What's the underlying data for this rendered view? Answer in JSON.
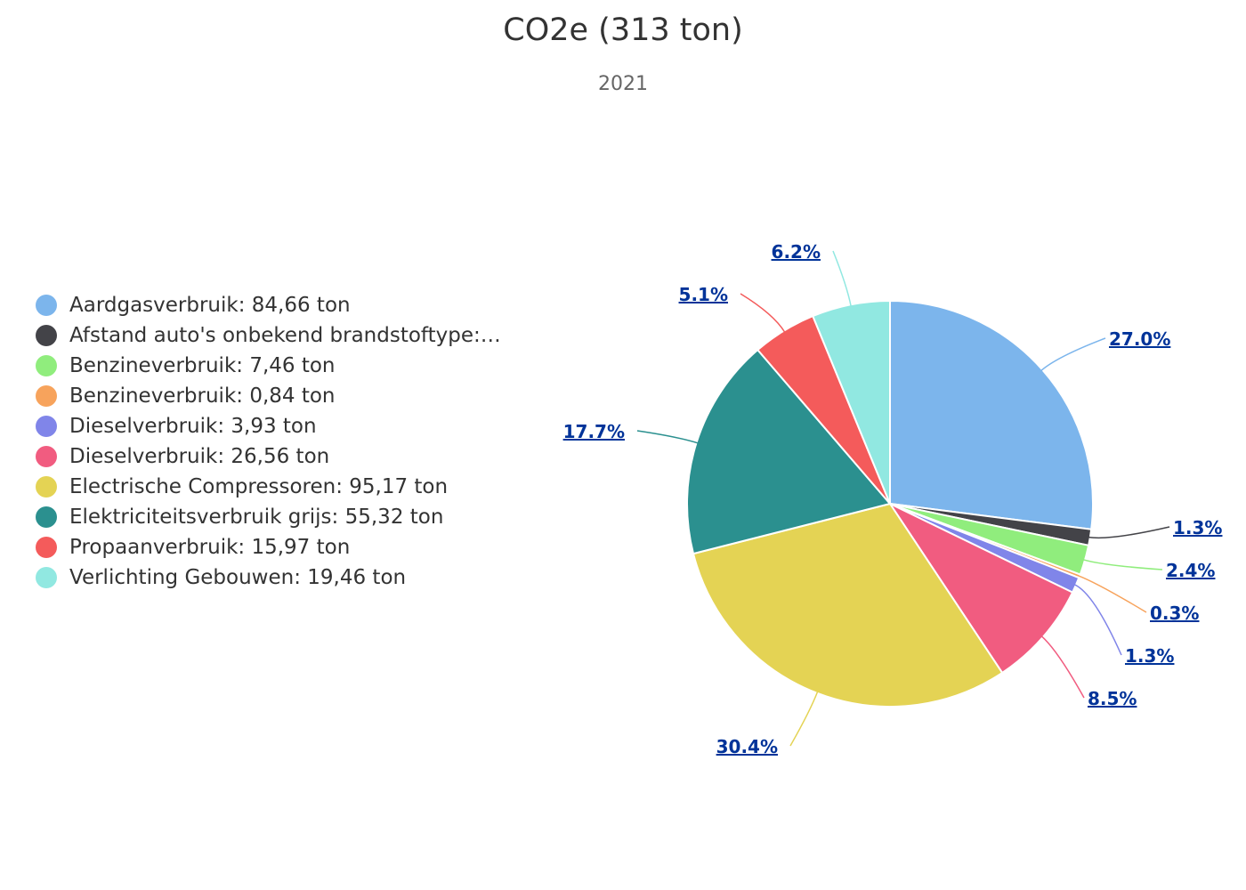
{
  "chart_data": {
    "type": "pie",
    "title": "CO2e (313 ton)",
    "subtitle": "2021",
    "legend_position": "left",
    "slices": [
      {
        "label": "Aardgasverbruik: 84,66 ton",
        "value": 84.66,
        "percent_label": "27.0%",
        "color": "#7cb5ec"
      },
      {
        "label": "Afstand auto's onbekend brandstoftype:…",
        "value": 4.0,
        "percent_label": "1.3%",
        "color": "#434348"
      },
      {
        "label": "Benzineverbruik: 7,46 ton",
        "value": 7.46,
        "percent_label": "2.4%",
        "color": "#90ed7d"
      },
      {
        "label": "Benzineverbruik: 0,84 ton",
        "value": 0.84,
        "percent_label": "0.3%",
        "color": "#f7a35c"
      },
      {
        "label": "Dieselverbruik: 3,93 ton",
        "value": 3.93,
        "percent_label": "1.3%",
        "color": "#8085e9"
      },
      {
        "label": "Dieselverbruik: 26,56 ton",
        "value": 26.56,
        "percent_label": "8.5%",
        "color": "#f15c80"
      },
      {
        "label": "Electrische Compressoren: 95,17 ton",
        "value": 95.17,
        "percent_label": "30.4%",
        "color": "#e4d354"
      },
      {
        "label": "Elektriciteitsverbruik grijs: 55,32 ton",
        "value": 55.32,
        "percent_label": "17.7%",
        "color": "#2b908f"
      },
      {
        "label": "Propaanverbruik: 15,97 ton",
        "value": 15.97,
        "percent_label": "5.1%",
        "color": "#f45b5b"
      },
      {
        "label": "Verlichting Gebouwen: 19,46 ton",
        "value": 19.46,
        "percent_label": "6.2%",
        "color": "#91e8e1"
      }
    ]
  }
}
